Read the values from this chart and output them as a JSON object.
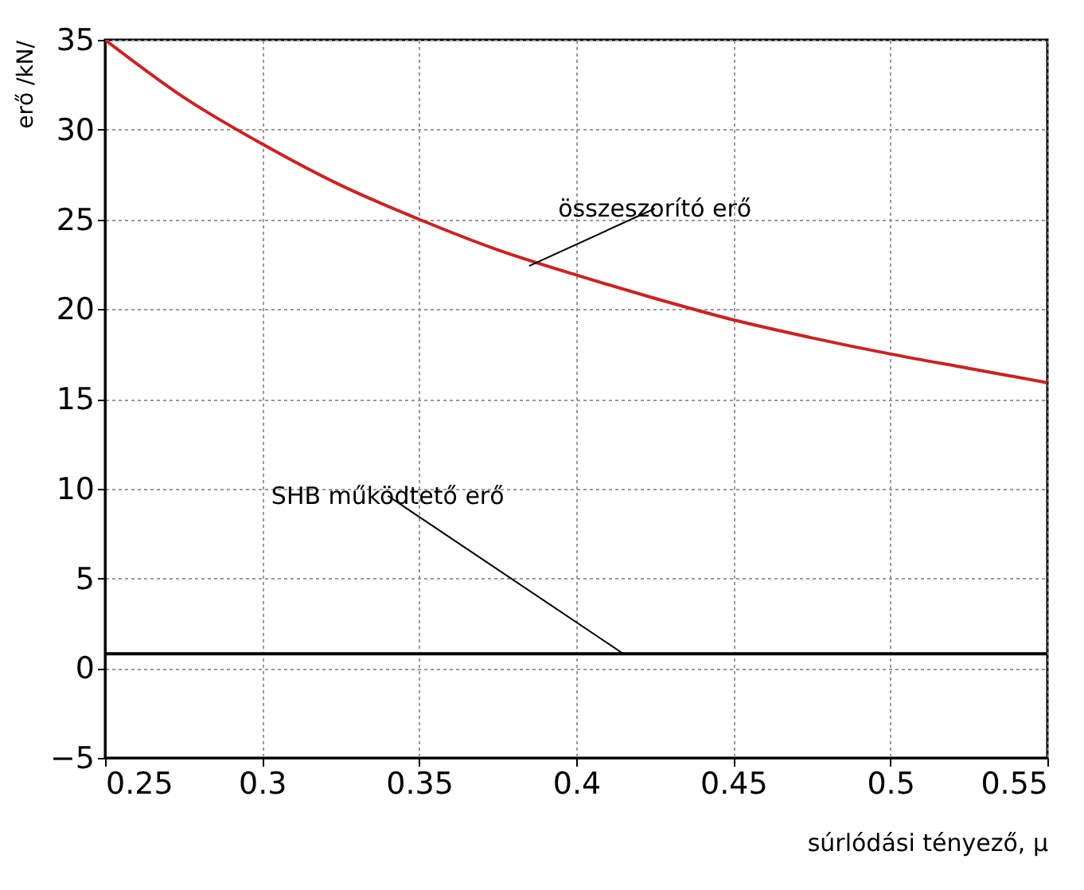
{
  "chart_data": {
    "type": "line",
    "xlabel": "súrlódási tényező, μ",
    "ylabel": "erő /kN/",
    "x": [
      0.25,
      0.275,
      0.3,
      0.325,
      0.35,
      0.375,
      0.4,
      0.425,
      0.45,
      0.475,
      0.5,
      0.525,
      0.55
    ],
    "series": [
      {
        "color": "#cc2222",
        "values": [
          35,
          31.8,
          29.2,
          26.9,
          25,
          23.3,
          21.9,
          20.6,
          19.4,
          18.4,
          17.5,
          16.7,
          15.9
        ]
      },
      {
        "color": "#000000",
        "values": [
          0.8,
          0.8,
          0.8,
          0.8,
          0.8,
          0.8,
          0.8,
          0.8,
          0.8,
          0.8,
          0.8,
          0.8,
          0.8
        ]
      }
    ],
    "annotations": [
      {
        "text": "összeszorító erő",
        "x": 0.385,
        "y": 22.4
      },
      {
        "text": "SHB működtető erő",
        "x": 0.415,
        "y": 0.8
      }
    ],
    "xlim": [
      0.25,
      0.55
    ],
    "xticks": [
      0.25,
      0.3,
      0.35,
      0.4,
      0.45,
      0.5,
      0.55
    ],
    "ylim": [
      -5,
      35
    ],
    "yticks": [
      -5,
      0,
      5,
      10,
      15,
      20,
      25,
      30,
      35
    ],
    "grid": true,
    "legend": false,
    "marker": "none",
    "line_style": "solid"
  }
}
